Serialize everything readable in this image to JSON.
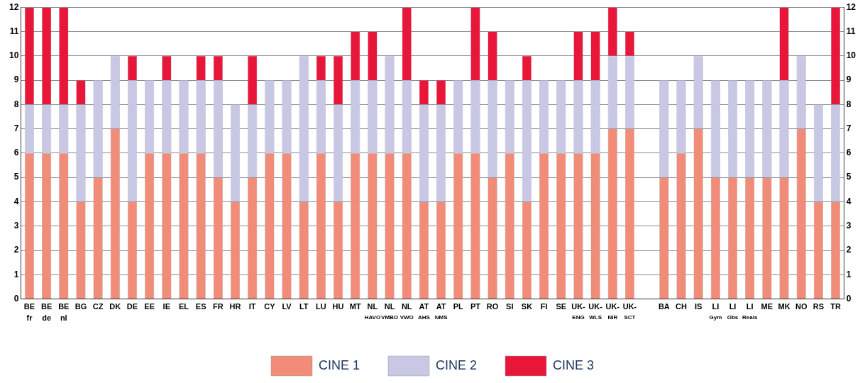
{
  "chart_data": {
    "type": "bar",
    "stacked": true,
    "categories": [
      "BE\nfr",
      "BE\nde",
      "BE\nnl",
      "BG",
      "CZ",
      "DK",
      "DE",
      "EE",
      "IE",
      "EL",
      "ES",
      "FR",
      "HR",
      "IT",
      "CY",
      "LV",
      "LT",
      "LU",
      "HU",
      "MT",
      "NL\nHAVO",
      "NL\nVMBO",
      "NL\nVWO",
      "AT\nAHS",
      "AT\nNMS",
      "PL",
      "PT",
      "RO",
      "SI",
      "SK",
      "FI",
      "SE",
      "UK-\nENG",
      "UK-\nWLS",
      "UK-\nNIR",
      "UK-\nSCT",
      null,
      "BA",
      "CH",
      "IS",
      "LI\nGym",
      "LI\nObs",
      "LI\nReals",
      "ME",
      "MK",
      "NO",
      "RS",
      "TR"
    ],
    "series": [
      {
        "name": "CINE 1",
        "color": "#f08c78",
        "values": [
          6,
          6,
          6,
          4,
          5,
          7,
          4,
          6,
          6,
          6,
          6,
          5,
          4,
          5,
          6,
          6,
          4,
          6,
          4,
          6,
          6,
          6,
          6,
          4,
          4,
          6,
          6,
          5,
          6,
          4,
          6,
          6,
          6,
          6,
          7,
          7,
          null,
          5,
          6,
          7,
          5,
          5,
          5,
          5,
          5,
          7,
          4,
          4
        ]
      },
      {
        "name": "CINE 2",
        "color": "#c8c8e4",
        "values": [
          2,
          2,
          2,
          4,
          4,
          3,
          5,
          3,
          3,
          3,
          3,
          4,
          4,
          3,
          3,
          3,
          6,
          3,
          4,
          3,
          3,
          4,
          3,
          4,
          4,
          3,
          3,
          4,
          3,
          5,
          3,
          3,
          3,
          3,
          3,
          3,
          null,
          4,
          3,
          3,
          4,
          4,
          4,
          4,
          4,
          3,
          4,
          4
        ]
      },
      {
        "name": "CINE 3",
        "color": "#e8173a",
        "values": [
          4,
          4,
          4,
          1,
          0,
          0,
          1,
          0,
          1,
          0,
          1,
          1,
          0,
          2,
          0,
          0,
          0,
          1,
          2,
          2,
          2,
          0,
          3,
          1,
          1,
          0,
          3,
          2,
          0,
          1,
          0,
          0,
          2,
          2,
          2,
          1,
          null,
          0,
          0,
          0,
          0,
          0,
          0,
          0,
          3,
          0,
          0,
          4
        ]
      }
    ],
    "ylim": [
      0,
      12
    ],
    "yticks": [
      0,
      1,
      2,
      3,
      4,
      5,
      6,
      7,
      8,
      9,
      10,
      11,
      12
    ],
    "y2lim": [
      0,
      12
    ],
    "y2ticks": [
      0,
      1,
      2,
      3,
      4,
      5,
      6,
      7,
      8,
      9,
      10,
      11,
      12
    ],
    "grid": "y",
    "legend": "bottom"
  }
}
